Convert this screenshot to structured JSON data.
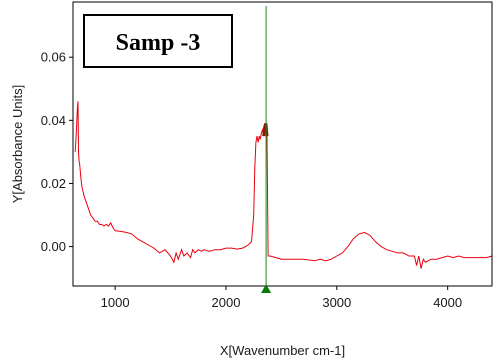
{
  "chart_data": {
    "type": "line",
    "title": "Samp -3",
    "xlabel": "X[Wavenumber cm-1]",
    "ylabel": "Y[Absorbance Units]",
    "xlim": [
      620,
      4400
    ],
    "ylim": [
      -0.0125,
      0.0775
    ],
    "x_ticks": [
      1000,
      2000,
      3000,
      4000
    ],
    "x_tick_labels": [
      "1000",
      "2000",
      "3000",
      "4000"
    ],
    "y_ticks": [
      0.0,
      0.02,
      0.04,
      0.06
    ],
    "y_tick_labels": [
      "0.00",
      "0.02",
      "0.04",
      "0.06"
    ],
    "grid": false,
    "cursor_x": 2362,
    "colors": {
      "series": "#e8000e",
      "highlight": "#8b1a00",
      "cursor": "#1a8a1a",
      "cursor_marker": "#0a7a0a",
      "frame": "#000000"
    },
    "series": [
      {
        "x": [
          640,
          650,
          660,
          665,
          670,
          675,
          680,
          690,
          700,
          720,
          740,
          760,
          780,
          800,
          820,
          840,
          860,
          880,
          900,
          920,
          940,
          960,
          980,
          1000,
          1050,
          1100,
          1150,
          1200,
          1250,
          1300,
          1350,
          1400,
          1450,
          1500,
          1530,
          1550,
          1570,
          1600,
          1620,
          1650,
          1680,
          1700,
          1720,
          1750,
          1780,
          1800,
          1850,
          1900,
          1950,
          2000,
          2050,
          2100,
          2150,
          2200,
          2230,
          2250,
          2260,
          2270,
          2280,
          2290,
          2300,
          2310,
          2320,
          2330,
          2340,
          2350,
          2360,
          2370,
          2380,
          2390,
          2400,
          2450,
          2500,
          2600,
          2700,
          2800,
          2850,
          2900,
          2950,
          3000,
          3050,
          3100,
          3150,
          3200,
          3250,
          3300,
          3350,
          3400,
          3450,
          3500,
          3550,
          3600,
          3650,
          3700,
          3720,
          3740,
          3760,
          3780,
          3800,
          3850,
          3900,
          3950,
          4000,
          4050,
          4100,
          4150,
          4200,
          4250,
          4300,
          4350,
          4400
        ],
        "y": [
          0.03,
          0.036,
          0.044,
          0.046,
          0.03,
          0.027,
          0.026,
          0.022,
          0.019,
          0.016,
          0.014,
          0.012,
          0.01,
          0.009,
          0.008,
          0.008,
          0.007,
          0.007,
          0.0065,
          0.007,
          0.0065,
          0.0075,
          0.006,
          0.005,
          0.0048,
          0.0045,
          0.004,
          0.0025,
          0.0015,
          0.0005,
          -0.0005,
          -0.002,
          -0.001,
          -0.003,
          -0.005,
          -0.002,
          -0.004,
          -0.001,
          -0.003,
          -0.002,
          -0.0035,
          -0.001,
          -0.002,
          -0.001,
          -0.0015,
          -0.001,
          -0.0015,
          -0.001,
          -0.001,
          -0.0005,
          -0.0005,
          -0.0008,
          -0.0005,
          0.0005,
          0.0015,
          0.01,
          0.025,
          0.033,
          0.035,
          0.033,
          0.035,
          0.034,
          0.036,
          0.037,
          0.035,
          0.038,
          0.039,
          0.035,
          -0.003,
          -0.003,
          -0.003,
          -0.0035,
          -0.004,
          -0.004,
          -0.004,
          -0.0045,
          -0.004,
          -0.0045,
          -0.004,
          -0.003,
          -0.002,
          0.0,
          0.0025,
          0.004,
          0.0045,
          0.0035,
          0.0015,
          0.0,
          -0.001,
          -0.0015,
          -0.002,
          -0.002,
          -0.003,
          -0.003,
          -0.006,
          -0.003,
          -0.007,
          -0.004,
          -0.005,
          -0.004,
          -0.004,
          -0.0035,
          -0.003,
          -0.0035,
          -0.003,
          -0.0035,
          -0.0035,
          -0.0035,
          -0.0035,
          -0.0035,
          -0.003
        ]
      }
    ]
  }
}
